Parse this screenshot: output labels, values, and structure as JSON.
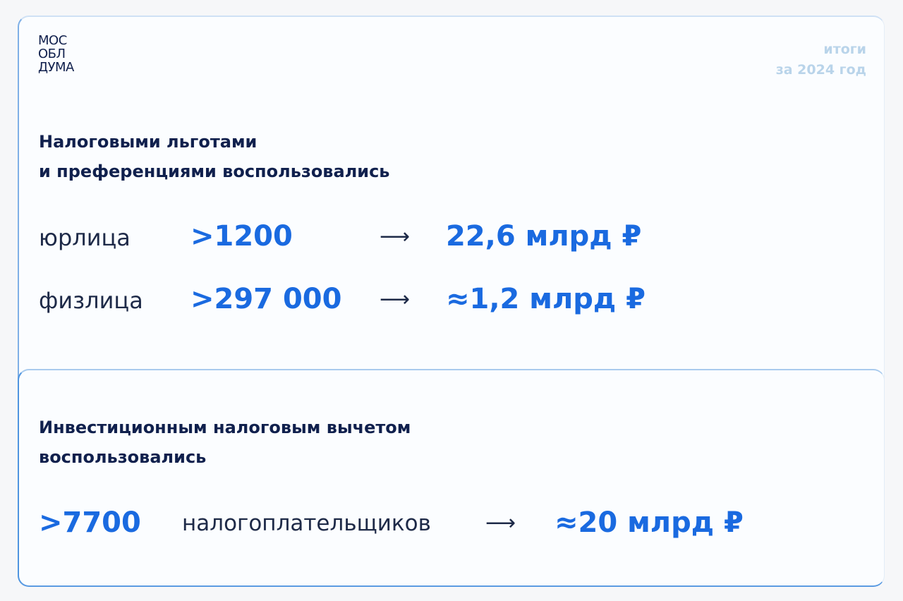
{
  "logo": {
    "line1": "МОС",
    "line2": "ОБЛ",
    "line3": "ДУМА"
  },
  "period": {
    "line1": "итоги",
    "line2": "за 2024 год"
  },
  "section1": {
    "heading_line1": "Налоговыми льготами",
    "heading_line2": "и преференциями воспользовались",
    "rows": [
      {
        "label": "юрлица",
        "count": ">1200",
        "arrow": "⟶",
        "amount": "22,6 млрд ₽"
      },
      {
        "label": "физлица",
        "count": ">297 000",
        "arrow": "⟶",
        "amount": "≈1,2 млрд ₽"
      }
    ]
  },
  "section2": {
    "heading_line1": "Инвестиционным налоговым вычетом",
    "heading_line2": "воспользовались",
    "count": ">7700",
    "label": "налогоплательщиков",
    "arrow": "⟶",
    "amount": "≈20 млрд ₽"
  },
  "colors": {
    "accent": "#1a6ae0",
    "heading": "#10204d",
    "period": "#b9d4ea"
  }
}
